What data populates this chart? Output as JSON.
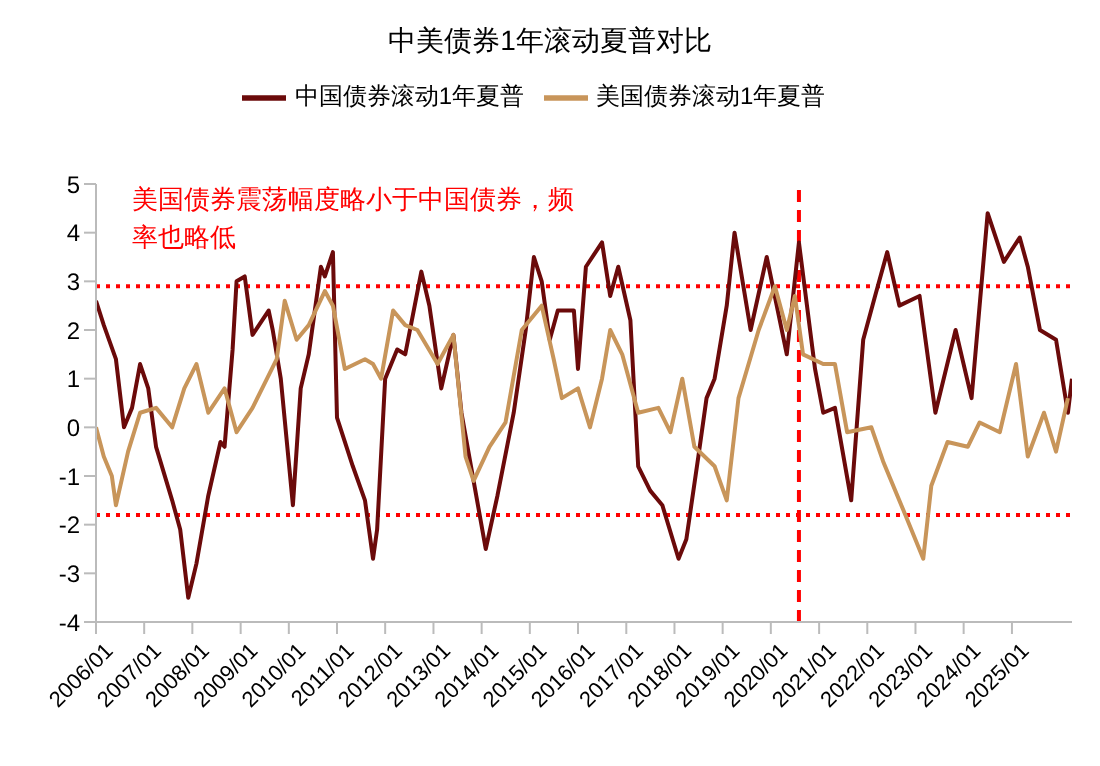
{
  "chart_data": {
    "type": "line",
    "title": "中美债券1年滚动夏普对比",
    "series": [
      {
        "name": "中国债券滚动1年夏普",
        "color": "#6b0a0a",
        "x": [
          "2006-01",
          "2006-03",
          "2006-06",
          "2006-08",
          "2006-10",
          "2006-12",
          "2007-02",
          "2007-04",
          "2007-08",
          "2007-10",
          "2007-12",
          "2008-02",
          "2008-05",
          "2008-08",
          "2008-09",
          "2008-11",
          "2008-12",
          "2009-02",
          "2009-04",
          "2009-08",
          "2009-09",
          "2009-11",
          "2010-02",
          "2010-04",
          "2010-06",
          "2010-09",
          "2010-10",
          "2010-12",
          "2011-01",
          "2011-05",
          "2011-08",
          "2011-10",
          "2011-11",
          "2012-01",
          "2012-04",
          "2012-06",
          "2012-10",
          "2012-12",
          "2013-03",
          "2013-06",
          "2013-08",
          "2013-11",
          "2014-02",
          "2014-05",
          "2014-09",
          "2014-12",
          "2015-02",
          "2015-04",
          "2015-06",
          "2015-08",
          "2015-12",
          "2016-01",
          "2016-03",
          "2016-07",
          "2016-09",
          "2016-11",
          "2017-02",
          "2017-04",
          "2017-07",
          "2017-10",
          "2018-02",
          "2018-04",
          "2018-07",
          "2018-09",
          "2018-11",
          "2019-02",
          "2019-04",
          "2019-08",
          "2019-12",
          "2020-05",
          "2020-08",
          "2020-12",
          "2021-02",
          "2021-05",
          "2021-09",
          "2021-12",
          "2022-03",
          "2022-06",
          "2022-09",
          "2023-02",
          "2023-06",
          "2023-11",
          "2024-03",
          "2024-07",
          "2024-11",
          "2025-03",
          "2025-05",
          "2025-08",
          "2025-12",
          "2026-03",
          "2026-04"
        ],
        "values": [
          2.6,
          2.1,
          1.4,
          0.0,
          0.4,
          1.3,
          0.8,
          -0.4,
          -1.5,
          -2.1,
          -3.5,
          -2.8,
          -1.4,
          -0.3,
          -0.4,
          1.6,
          3.0,
          3.1,
          1.9,
          2.4,
          2.0,
          1.0,
          -1.6,
          0.8,
          1.5,
          3.3,
          3.1,
          3.6,
          0.2,
          -0.8,
          -1.5,
          -2.7,
          -2.1,
          1.0,
          1.6,
          1.5,
          3.2,
          2.5,
          0.8,
          1.9,
          0.3,
          -1.1,
          -2.5,
          -1.4,
          0.3,
          2.0,
          3.5,
          3.0,
          1.8,
          2.4,
          2.4,
          1.2,
          3.3,
          3.8,
          2.7,
          3.3,
          2.2,
          -0.8,
          -1.3,
          -1.6,
          -2.7,
          -2.3,
          -0.6,
          0.6,
          1.0,
          2.5,
          4.0,
          2.0,
          3.5,
          1.5,
          3.8,
          1.2,
          0.3,
          0.4,
          -1.5,
          1.8,
          2.7,
          3.6,
          2.5,
          2.7,
          0.3,
          2.0,
          0.6,
          4.4,
          3.4,
          3.9,
          3.3,
          2.0,
          1.8,
          0.3,
          1.0
        ]
      },
      {
        "name": "美国债券滚动1年夏普",
        "color": "#c8955a",
        "x": [
          "2006-01",
          "2006-03",
          "2006-05",
          "2006-06",
          "2006-09",
          "2006-12",
          "2007-04",
          "2007-08",
          "2007-11",
          "2008-02",
          "2008-05",
          "2008-09",
          "2008-12",
          "2009-04",
          "2009-07",
          "2009-10",
          "2009-12",
          "2010-03",
          "2010-06",
          "2010-10",
          "2010-12",
          "2011-03",
          "2011-08",
          "2011-10",
          "2011-12",
          "2012-03",
          "2012-06",
          "2012-09",
          "2013-02",
          "2013-06",
          "2013-09",
          "2013-11",
          "2014-03",
          "2014-07",
          "2014-11",
          "2015-04",
          "2015-07",
          "2015-09",
          "2016-01",
          "2016-04",
          "2016-07",
          "2016-09",
          "2016-12",
          "2017-04",
          "2017-09",
          "2017-12",
          "2018-03",
          "2018-06",
          "2018-11",
          "2019-02",
          "2019-05",
          "2019-10",
          "2020-02",
          "2020-05",
          "2020-07",
          "2020-09",
          "2021-02",
          "2021-05",
          "2021-08",
          "2022-02",
          "2022-05",
          "2022-10",
          "2023-03",
          "2023-05",
          "2023-09",
          "2024-02",
          "2024-05",
          "2024-10",
          "2025-02",
          "2025-05",
          "2025-09",
          "2025-12",
          "2026-03"
        ],
        "values": [
          0.0,
          -0.6,
          -1.0,
          -1.6,
          -0.5,
          0.3,
          0.4,
          0.0,
          0.8,
          1.3,
          0.3,
          0.8,
          -0.1,
          0.4,
          0.9,
          1.4,
          2.6,
          1.8,
          2.1,
          2.8,
          2.5,
          1.2,
          1.4,
          1.3,
          1.0,
          2.4,
          2.1,
          2.0,
          1.3,
          1.9,
          -0.6,
          -1.1,
          -0.4,
          0.1,
          2.0,
          2.5,
          1.4,
          0.6,
          0.8,
          0.0,
          1.0,
          2.0,
          1.5,
          0.3,
          0.4,
          -0.1,
          1.0,
          -0.4,
          -0.8,
          -1.5,
          0.6,
          2.0,
          2.9,
          2.0,
          2.7,
          1.5,
          1.3,
          1.3,
          -0.1,
          0.0,
          -0.7,
          -1.7,
          -2.7,
          -1.2,
          -0.3,
          -0.4,
          0.1,
          -0.1,
          1.3,
          -0.6,
          0.3,
          -0.5,
          0.6
        ]
      }
    ],
    "xlim": [
      "2006-01",
      "2026-04"
    ],
    "xticks": [
      {
        "value": "2006-01",
        "label": "2006/01"
      },
      {
        "value": "2007-01",
        "label": "2007/01"
      },
      {
        "value": "2008-01",
        "label": "2008/01"
      },
      {
        "value": "2009-01",
        "label": "2009/01"
      },
      {
        "value": "2010-01",
        "label": "2010/01"
      },
      {
        "value": "2011-01",
        "label": "2011/01"
      },
      {
        "value": "2012-01",
        "label": "2012/01"
      },
      {
        "value": "2013-01",
        "label": "2013/01"
      },
      {
        "value": "2014-01",
        "label": "2014/01"
      },
      {
        "value": "2015-01",
        "label": "2015/01"
      },
      {
        "value": "2016-01",
        "label": "2016/01"
      },
      {
        "value": "2017-01",
        "label": "2017/01"
      },
      {
        "value": "2018-01",
        "label": "2018/01"
      },
      {
        "value": "2019-01",
        "label": "2019/01"
      },
      {
        "value": "2020-01",
        "label": "2020/01"
      },
      {
        "value": "2021-01",
        "label": "2021/01"
      },
      {
        "value": "2022-01",
        "label": "2022/01"
      },
      {
        "value": "2023-01",
        "label": "2023/01"
      },
      {
        "value": "2024-01",
        "label": "2024/01"
      },
      {
        "value": "2025-01",
        "label": "2025/01"
      }
    ],
    "ylim": [
      -4,
      5
    ],
    "yticks": [
      -4,
      -3,
      -2,
      -1,
      0,
      1,
      2,
      3,
      4,
      5
    ],
    "grid": false,
    "legend": "top",
    "marker": "none",
    "line_style": "solid",
    "ref_lines": [
      {
        "axis": "y",
        "value": 2.9,
        "color": "#ff0000",
        "line_style": "dotted"
      },
      {
        "axis": "y",
        "value": -1.8,
        "color": "#ff0000",
        "line_style": "dotted"
      },
      {
        "axis": "x",
        "value": "2020-08",
        "color": "#ff0000",
        "line_style": "dashed"
      }
    ],
    "annotations": [
      "美国债券震荡幅度略小于中国债券，频率也略低"
    ]
  }
}
